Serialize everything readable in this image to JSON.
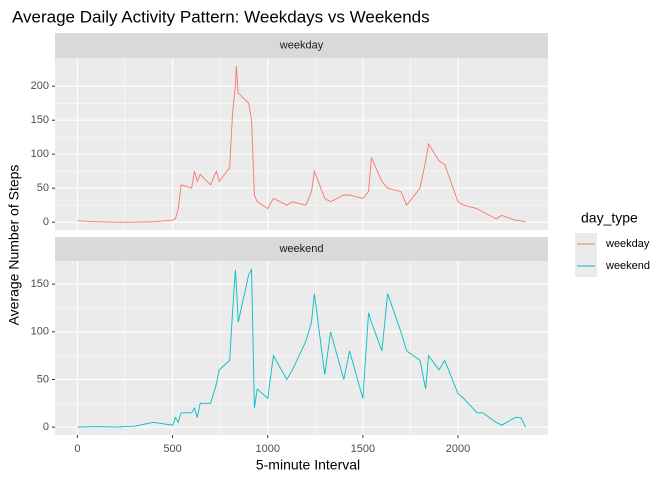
{
  "chart_data": {
    "type": "line",
    "title": "Average Daily Activity Pattern: Weekdays vs Weekends",
    "x_label": "5-minute Interval",
    "y_label": "Average Number of Steps",
    "legend_title": "day_type",
    "xlim": [
      -117.75,
      2472.75
    ],
    "xticks": [
      0,
      500,
      1000,
      1500,
      2000
    ],
    "grid": true,
    "x": [
      0,
      100,
      200,
      300,
      400,
      500,
      515,
      530,
      545,
      600,
      615,
      630,
      645,
      700,
      715,
      730,
      745,
      800,
      815,
      830,
      835,
      845,
      900,
      915,
      930,
      945,
      1000,
      1030,
      1100,
      1130,
      1200,
      1230,
      1245,
      1300,
      1330,
      1400,
      1430,
      1500,
      1530,
      1545,
      1600,
      1630,
      1700,
      1730,
      1800,
      1830,
      1845,
      1900,
      1930,
      2000,
      2030,
      2100,
      2130,
      2200,
      2230,
      2300,
      2330,
      2355
    ],
    "series": [
      {
        "name": "weekday",
        "color": "#F8766D",
        "ylim": [
          -11.5,
          241.5
        ],
        "yticks": [
          0,
          50,
          100,
          150,
          200
        ],
        "values": [
          2,
          0.5,
          0,
          0,
          0.5,
          3,
          5,
          20,
          55,
          50,
          75,
          60,
          70,
          55,
          65,
          75,
          60,
          80,
          160,
          200,
          230,
          190,
          175,
          150,
          40,
          30,
          20,
          35,
          25,
          30,
          25,
          45,
          75,
          35,
          30,
          40,
          40,
          35,
          45,
          95,
          60,
          50,
          45,
          25,
          50,
          90,
          115,
          90,
          85,
          30,
          25,
          20,
          15,
          5,
          10,
          3,
          2,
          0
        ]
      },
      {
        "name": "weekend",
        "color": "#00BFC4",
        "ylim": [
          -8.3,
          174.3
        ],
        "yticks": [
          0,
          50,
          100,
          150
        ],
        "values": [
          0,
          0.5,
          0,
          1,
          5,
          2,
          10,
          5,
          15,
          15,
          20,
          10,
          25,
          25,
          35,
          45,
          60,
          70,
          120,
          165,
          150,
          110,
          160,
          165,
          20,
          40,
          30,
          75,
          50,
          60,
          90,
          110,
          140,
          55,
          100,
          50,
          80,
          30,
          120,
          110,
          80,
          140,
          100,
          80,
          70,
          40,
          75,
          60,
          70,
          35,
          30,
          15,
          15,
          5,
          2,
          10,
          10,
          0
        ]
      }
    ]
  }
}
